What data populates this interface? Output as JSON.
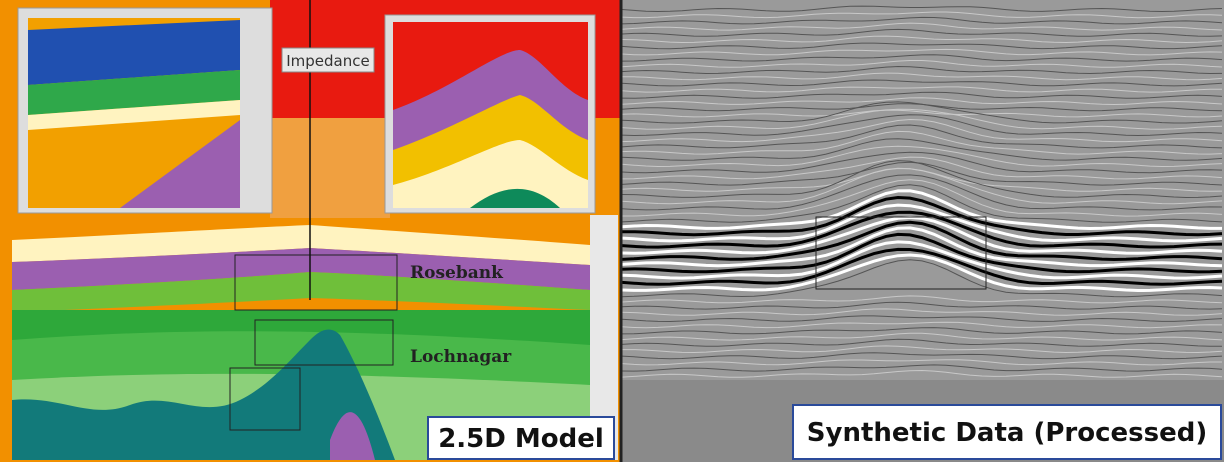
{
  "left_panel": {
    "impedance_label": "Impedance",
    "rosebank_label": "Rosebank",
    "lochnagar_label": "Lochnagar",
    "caption": "2.5D Model"
  },
  "right_panel": {
    "caption": "Synthetic Data (Processed)"
  }
}
